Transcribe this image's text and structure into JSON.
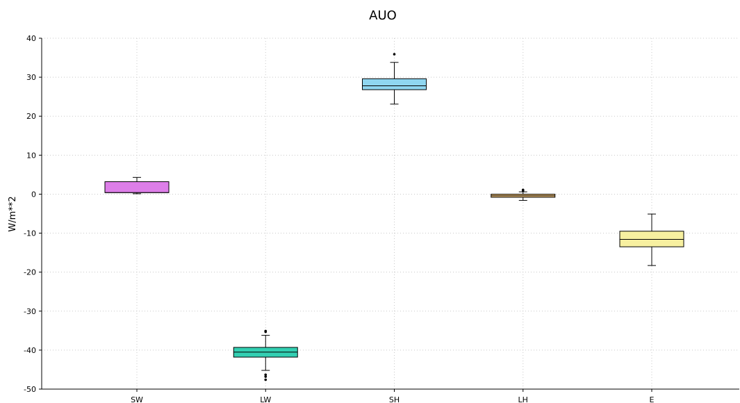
{
  "chart_data": {
    "type": "box",
    "title": "AUO",
    "xlabel": "",
    "ylabel": "W/m**2",
    "ylim": [
      -50,
      40
    ],
    "yticks": [
      40,
      30,
      20,
      10,
      0,
      -10,
      -20,
      -30,
      -40,
      -50
    ],
    "grid": true,
    "categories": [
      "SW",
      "LW",
      "SH",
      "LH",
      "E"
    ],
    "boxes": [
      {
        "label": "SW",
        "color": "#dd7ee8",
        "whisker_low": 0.1,
        "q1": 0.4,
        "median": 0.4,
        "q3": 3.2,
        "whisker_high": 4.3,
        "outliers": []
      },
      {
        "label": "LW",
        "color": "#33cfb2",
        "whisker_low": -45.2,
        "q1": -41.8,
        "median": -40.5,
        "q3": -39.3,
        "whisker_high": -36.2,
        "outliers": [
          -35.1,
          -35.3,
          -46.3,
          -46.8,
          -47.6
        ]
      },
      {
        "label": "SH",
        "color": "#8fd6f0",
        "whisker_low": 23.1,
        "q1": 26.8,
        "median": 27.8,
        "q3": 29.6,
        "whisker_high": 33.8,
        "outliers": [
          35.9
        ]
      },
      {
        "label": "LH",
        "color": "#f5c77e",
        "whisker_low": -1.6,
        "q1": -0.8,
        "median": -0.4,
        "q3": 0.0,
        "whisker_high": 0.6,
        "outliers": [
          0.9,
          1.1
        ]
      },
      {
        "label": "E",
        "color": "#f7f0a0",
        "whisker_low": -18.3,
        "q1": -13.5,
        "median": -11.6,
        "q3": -9.5,
        "whisker_high": -5.1,
        "outliers": []
      }
    ]
  }
}
